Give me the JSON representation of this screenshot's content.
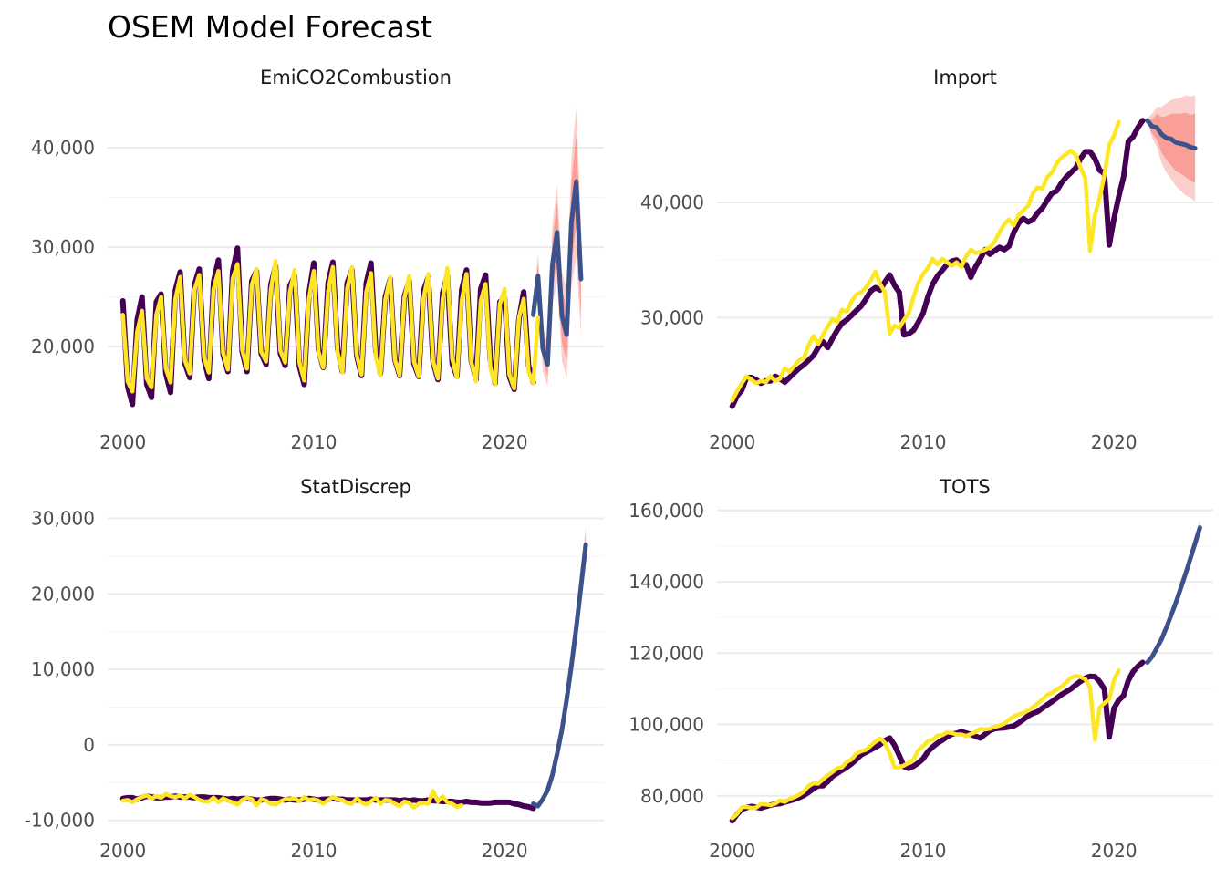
{
  "title": "OSEM Model Forecast",
  "colors": {
    "observed": "#440154",
    "fitted": "#FDE725",
    "forecast": "#3B528B",
    "band_outer": "#F8766D",
    "band_inner": "#F8766D"
  },
  "chart_data": [
    {
      "type": "line",
      "panel": "EmiCO2Combustion",
      "x_ticks": [
        2000,
        2010,
        2020
      ],
      "y_ticks": [
        20000,
        30000,
        40000
      ],
      "y_tick_labels": [
        "20,000",
        "30,000",
        "40,000"
      ],
      "xlim": [
        1999.2,
        2025.2
      ],
      "ylim": [
        12500,
        45500
      ],
      "observed": {
        "x_start": 2000.0,
        "step": 0.25,
        "values": [
          24600,
          16000,
          14200,
          22700,
          25000,
          16200,
          14900,
          24500,
          25300,
          17300,
          15400,
          25700,
          27500,
          18300,
          16900,
          26200,
          27800,
          18700,
          16800,
          26500,
          28700,
          19200,
          17500,
          27600,
          29900,
          19500,
          17500,
          26600,
          27600,
          19300,
          18200,
          26200,
          28100,
          19300,
          18100,
          26100,
          27100,
          18000,
          16200,
          25300,
          28400,
          19700,
          17900,
          26400,
          28500,
          19800,
          17500,
          26400,
          27700,
          19100,
          17100,
          26400,
          28400,
          19500,
          17300,
          25000,
          26800,
          18700,
          17100,
          25100,
          26600,
          18300,
          17000,
          25600,
          27000,
          18500,
          16700,
          25400,
          27100,
          18300,
          17000,
          25700,
          27700,
          18600,
          16700,
          25800,
          27200,
          18700,
          16300,
          24500,
          24900,
          17000,
          15700,
          22800,
          25500,
          18100,
          16400
        ]
      },
      "fitted": {
        "x_start": 2000.0,
        "step": 0.25,
        "values": [
          23200,
          16500,
          15500,
          21500,
          23600,
          16800,
          15900,
          23200,
          25000,
          17800,
          16400,
          24800,
          27000,
          18600,
          17300,
          25700,
          27200,
          18900,
          17400,
          25800,
          27600,
          19400,
          17700,
          26800,
          28300,
          19700,
          17800,
          26200,
          27800,
          19500,
          18500,
          25700,
          28600,
          19600,
          18400,
          25500,
          27700,
          18400,
          16600,
          24800,
          27600,
          19500,
          17900,
          25600,
          28000,
          19400,
          17400,
          25800,
          28000,
          19200,
          17200,
          25500,
          27400,
          18900,
          17100,
          24700,
          27000,
          18700,
          17100,
          24900,
          27100,
          18500,
          17000,
          24800,
          27300,
          18600,
          16800,
          24700,
          27900,
          18800,
          16900,
          24600,
          27300,
          18500,
          16500,
          24600,
          26300,
          17900,
          16200,
          24300,
          25800,
          17200,
          15800,
          22900,
          24800,
          17500,
          16300,
          22900
        ]
      },
      "forecast": {
        "x_start": 2021.5,
        "step": 0.25,
        "values": [
          23200,
          27100,
          19800,
          18200,
          28200,
          31500,
          23100,
          21200,
          32500,
          36600,
          26800
        ],
        "lo80": [
          22800,
          25900,
          18800,
          17000,
          25800,
          28500,
          20400,
          18600,
          28500,
          32000,
          23000
        ],
        "hi80": [
          23700,
          28400,
          20900,
          19500,
          30600,
          34600,
          25800,
          23900,
          36500,
          41300,
          30600
        ],
        "lo95": [
          22500,
          24800,
          17600,
          16000,
          24200,
          26500,
          18600,
          16800,
          26000,
          29000,
          21000
        ],
        "hi95": [
          23900,
          29400,
          21900,
          20500,
          32200,
          36300,
          27600,
          25700,
          39000,
          44000,
          32600
        ]
      }
    },
    {
      "type": "line",
      "panel": "Import",
      "x_ticks": [
        2000,
        2010,
        2020
      ],
      "y_ticks": [
        30000,
        40000
      ],
      "y_tick_labels": [
        "30,000",
        "40,000"
      ],
      "xlim": [
        1999.2,
        2025.2
      ],
      "ylim": [
        21000,
        49500
      ],
      "observed": {
        "x_start": 2000.0,
        "step": 0.25,
        "values": [
          22300,
          23200,
          23700,
          24800,
          24800,
          24600,
          24300,
          24500,
          24500,
          24900,
          24700,
          24400,
          24800,
          25200,
          25600,
          25900,
          26300,
          26700,
          27400,
          27900,
          27400,
          28200,
          28900,
          29500,
          29800,
          30200,
          30600,
          31000,
          31600,
          32300,
          32600,
          32400,
          33100,
          33700,
          32800,
          32200,
          28500,
          28600,
          28900,
          29600,
          30400,
          31800,
          32900,
          33600,
          34100,
          34600,
          34900,
          35000,
          34600,
          34600,
          33500,
          34400,
          35100,
          35900,
          35500,
          35800,
          36100,
          35900,
          36200,
          37400,
          38200,
          38600,
          38300,
          38500,
          39100,
          39500,
          40200,
          40800,
          41000,
          41700,
          42200,
          42600,
          43000,
          43800,
          44400,
          44400,
          43800,
          42800,
          42500,
          36300,
          38600,
          40500,
          42200,
          45300,
          45700,
          46500,
          47100
        ]
      },
      "fitted": {
        "x_start": 2000.0,
        "step": 0.25,
        "values": [
          22800,
          23600,
          24300,
          24900,
          24600,
          24300,
          24500,
          24400,
          24900,
          24500,
          24700,
          25600,
          25300,
          25800,
          26300,
          26500,
          27600,
          28400,
          27700,
          28500,
          29200,
          29900,
          29600,
          30700,
          30500,
          31400,
          32000,
          32200,
          32600,
          33200,
          34000,
          32900,
          32200,
          28600,
          29300,
          29100,
          29800,
          30400,
          31800,
          33000,
          33800,
          34300,
          35100,
          34600,
          35100,
          34800,
          34500,
          34800,
          34400,
          35300,
          35900,
          35600,
          35700,
          35900,
          36100,
          36600,
          37400,
          38100,
          38500,
          38000,
          38900,
          39300,
          39700,
          40800,
          41300,
          41200,
          42200,
          42600,
          43400,
          43900,
          44200,
          44500,
          44100,
          43000,
          42100,
          35800,
          38900,
          40400,
          42400,
          45000,
          45800,
          47000
        ]
      },
      "forecast": {
        "x_start": 2021.75,
        "step": 0.25,
        "values": [
          47100,
          46600,
          46500,
          45900,
          45600,
          45500,
          45200,
          45100,
          45000,
          44800,
          44700
        ],
        "lo80": [
          47000,
          46000,
          45400,
          44300,
          43700,
          43200,
          42700,
          42500,
          42200,
          41900,
          41700
        ],
        "hi80": [
          47200,
          47200,
          47700,
          47400,
          47500,
          47700,
          47700,
          47700,
          47800,
          47600,
          47700
        ],
        "lo95": [
          47000,
          45600,
          44800,
          43400,
          42600,
          42000,
          41400,
          41000,
          40600,
          40400,
          40100
        ],
        "hi95": [
          47300,
          47700,
          48300,
          48300,
          48600,
          48900,
          49000,
          49100,
          49300,
          49200,
          49300
        ]
      }
    },
    {
      "type": "line",
      "panel": "StatDiscrep",
      "x_ticks": [
        2000,
        2010,
        2020
      ],
      "y_ticks": [
        -10000,
        0,
        10000,
        20000,
        30000
      ],
      "y_tick_labels": [
        "-10,000",
        "0",
        "10,000",
        "20,000",
        "30,000"
      ],
      "xlim": [
        1999.2,
        2025.2
      ],
      "ylim": [
        -11000,
        32000
      ],
      "observed": {
        "x_start": 2000.0,
        "step": 0.25,
        "values": [
          -7100,
          -7000,
          -7000,
          -7200,
          -7000,
          -6800,
          -6900,
          -7000,
          -7000,
          -6900,
          -6900,
          -6800,
          -6900,
          -6900,
          -6900,
          -7000,
          -6900,
          -6900,
          -7000,
          -7000,
          -7000,
          -7100,
          -7200,
          -7100,
          -7200,
          -7100,
          -7100,
          -7200,
          -7300,
          -7300,
          -7200,
          -7100,
          -7100,
          -7200,
          -7300,
          -7200,
          -7300,
          -7300,
          -7200,
          -7100,
          -7200,
          -7300,
          -7200,
          -7200,
          -7100,
          -7200,
          -7200,
          -7300,
          -7300,
          -7300,
          -7300,
          -7300,
          -7200,
          -7300,
          -7300,
          -7300,
          -7300,
          -7300,
          -7400,
          -7300,
          -7400,
          -7300,
          -7400,
          -7400,
          -7300,
          -7400,
          -7400,
          -7500,
          -7500,
          -7500,
          -7600,
          -7600,
          -7500,
          -7600,
          -7600,
          -7700,
          -7700,
          -7700,
          -7600,
          -7600,
          -7600,
          -7600,
          -7800,
          -7900,
          -8100,
          -8200,
          -8400
        ]
      },
      "fitted": {
        "x_start": 2000.0,
        "step": 0.25,
        "values": [
          -7400,
          -7300,
          -7600,
          -7200,
          -6900,
          -6700,
          -7100,
          -6800,
          -7000,
          -6500,
          -6800,
          -6900,
          -6700,
          -7100,
          -6600,
          -6900,
          -7300,
          -7500,
          -7500,
          -7000,
          -7600,
          -7100,
          -7400,
          -7600,
          -7900,
          -7300,
          -7000,
          -7200,
          -8000,
          -7200,
          -7400,
          -7800,
          -7900,
          -7500,
          -7200,
          -7200,
          -7100,
          -7500,
          -6900,
          -7300,
          -7200,
          -7400,
          -7800,
          -7300,
          -6900,
          -7200,
          -7300,
          -7700,
          -7800,
          -7100,
          -7600,
          -7900,
          -7500,
          -7000,
          -7800,
          -7300,
          -7400,
          -7800,
          -8100,
          -7500,
          -7700,
          -8300,
          -7800,
          -7700,
          -7800,
          -6100,
          -7500,
          -6800,
          -7600,
          -7800,
          -8200,
          -8000
        ]
      },
      "forecast": {
        "x_start": 2021.5,
        "step": 0.25,
        "values": [
          -7800,
          -8100,
          -7200,
          -6000,
          -4000,
          -1200,
          2000,
          6000,
          10500,
          15500,
          21000,
          26500
        ],
        "lo80": [
          -7900,
          -8300,
          -7500,
          -6400,
          -4500,
          -1800,
          1300,
          5200,
          9600,
          14500,
          19900,
          25200
        ],
        "hi80": [
          -7700,
          -7900,
          -6900,
          -5600,
          -3500,
          -600,
          2700,
          6800,
          11400,
          16500,
          22100,
          27800
        ],
        "lo95": [
          -8000,
          -8400,
          -7700,
          -6700,
          -4900,
          -2300,
          800,
          4600,
          8900,
          13700,
          19000,
          24100
        ],
        "hi95": [
          -7600,
          -7800,
          -6700,
          -5300,
          -3100,
          -100,
          3200,
          7400,
          12100,
          17300,
          23000,
          29000
        ]
      }
    },
    {
      "type": "line",
      "panel": "TOTS",
      "x_ticks": [
        2000,
        2010,
        2020
      ],
      "y_ticks": [
        80000,
        100000,
        120000,
        140000,
        160000
      ],
      "y_tick_labels": [
        "80,000",
        "100,000",
        "120,000",
        "140,000",
        "160,000"
      ],
      "xlim": [
        1999.2,
        2025.2
      ],
      "ylim": [
        71000,
        162000
      ],
      "observed": {
        "x_start": 2000.0,
        "step": 0.25,
        "values": [
          73000,
          74800,
          76200,
          76700,
          77000,
          76800,
          76600,
          77000,
          77400,
          77700,
          77800,
          78200,
          78600,
          79000,
          79500,
          80100,
          81000,
          82000,
          82800,
          82800,
          84000,
          85500,
          86300,
          87200,
          88000,
          89000,
          90200,
          91500,
          92200,
          92900,
          93600,
          94400,
          95500,
          96200,
          94200,
          91300,
          88200,
          87700,
          88300,
          89200,
          90400,
          92400,
          93700,
          94800,
          95600,
          96500,
          97300,
          97500,
          98000,
          97600,
          97200,
          96700,
          96200,
          97300,
          98300,
          98800,
          99000,
          99100,
          99300,
          99600,
          100400,
          101400,
          102400,
          103100,
          103600,
          104600,
          105500,
          106400,
          107400,
          108400,
          109200,
          110000,
          111100,
          112100,
          113000,
          113500,
          113400,
          112000,
          109900,
          96500,
          104500,
          106800,
          108100,
          112300,
          114800,
          116300,
          117400
        ]
      },
      "fitted": {
        "x_start": 2000.0,
        "step": 0.25,
        "values": [
          73700,
          74900,
          76800,
          76900,
          76600,
          76700,
          77700,
          77600,
          77400,
          77800,
          78700,
          78300,
          79100,
          79600,
          80300,
          81200,
          82800,
          83500,
          83400,
          84700,
          85700,
          86700,
          87700,
          88000,
          89500,
          90200,
          91800,
          92500,
          92900,
          94000,
          95200,
          96100,
          94800,
          91800,
          88000,
          88000,
          88500,
          89300,
          90200,
          92800,
          93900,
          95300,
          95700,
          96900,
          97000,
          97800,
          97600,
          97200,
          97200,
          96800,
          97300,
          97900,
          98800,
          98600,
          98800,
          99300,
          99700,
          100200,
          101400,
          102300,
          102800,
          103200,
          104000,
          104800,
          105900,
          107000,
          108300,
          108800,
          109800,
          110600,
          111800,
          113100,
          113600,
          113300,
          112700,
          110200,
          95800,
          104800,
          106000,
          107100,
          112400,
          115200
        ]
      },
      "forecast": {
        "x_start": 2021.75,
        "step": 0.25,
        "values": [
          117400,
          119000,
          121500,
          124000,
          127200,
          130700,
          134300,
          138200,
          142300,
          146500,
          150800,
          155200
        ],
        "lo80": [
          117300,
          118800,
          121200,
          123600,
          126700,
          130100,
          133600,
          137400,
          141400,
          145500,
          149700,
          154000
        ],
        "hi80": [
          117500,
          119200,
          121800,
          124400,
          127700,
          131300,
          135000,
          139000,
          143200,
          147500,
          151900,
          156400
        ],
        "lo95": [
          117200,
          118600,
          121000,
          123300,
          126400,
          129700,
          133100,
          136800,
          140800,
          144800,
          148900,
          153100
        ],
        "hi95": [
          117600,
          119400,
          122000,
          124700,
          128000,
          131700,
          135500,
          139600,
          143800,
          148200,
          152700,
          157400
        ]
      }
    }
  ]
}
